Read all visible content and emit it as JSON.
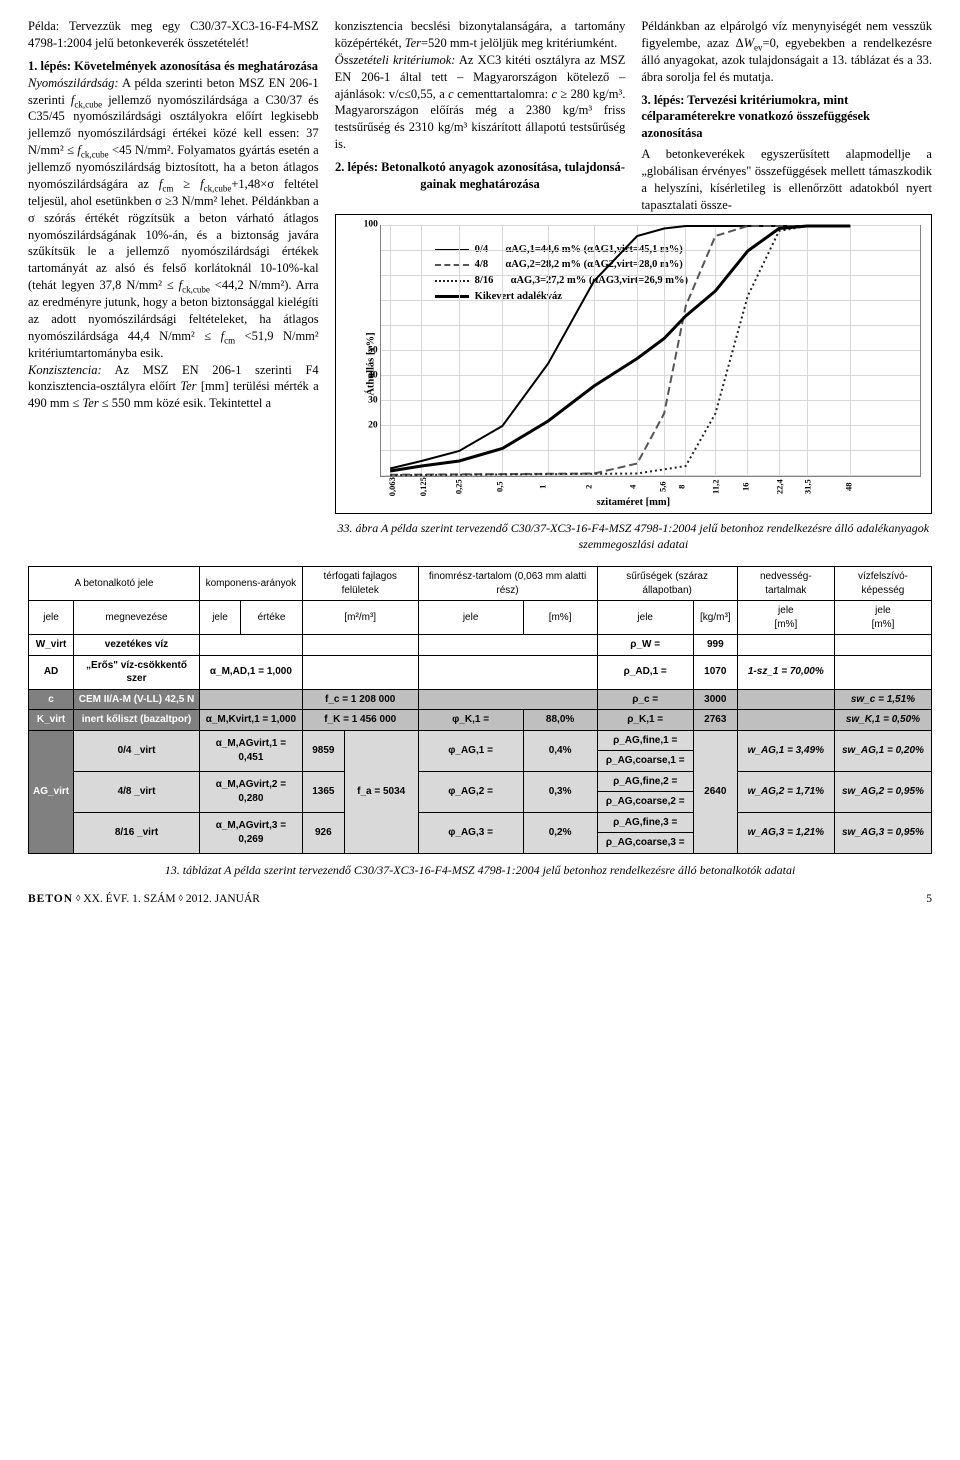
{
  "columns": {
    "c1p1_html": "Példa: Tervezzük meg egy C30/37-XC3-16-F4-MSZ 4798-1:2004 jelű betonkeverék összetételét!",
    "c1p2_html": "1. lépés: Követelmények azonosítása és meghatározása",
    "c1p3_html": "<span class='it'>Nyomószilárdság:</span> A példa szerinti beton MSZ EN 206-1 szerinti <span class='it'>f</span><sub>ck,cube</sub> jellemző nyomószilárdsága a C30/37 és C35/45 nyomószilárdsági osztályokra előírt leg­kisebb jellemző nyomószilárdsági értékei közé kell essen: 37 N/mm² ≤ <span class='it'>f</span><sub>ck,cube</sub> &lt;45 N/mm². Folyamatos gyár­tás esetén a jellemző nyomószilárdság biztosított, ha a beton átlagos nyomó­szilárdságára az <span class='it'>f</span><sub>cm</sub> ≥ <span class='it'>f</span><sub>ck,cube</sub>+1,48×σ feltétel teljesül, ahol esetünkben σ ≥3 N/mm² lehet. Példánkban a σ szórás értékét rögzítsük a beton várha­tó átlagos nyomószilárdságának 10%-án, és a biztonság javára szűkítsük le a jellemző nyomószilárdsági értékek tartományát az alsó és felső korlátoknál 10-10%-kal (tehát legyen 37,8 N/mm² ≤ <span class='it'>f</span><sub>ck,cube</sub> &lt;44,2 N/mm²). Arra az ered­ményre jutunk, hogy a beton bizton­sággal kielégíti az adott nyomószilárdsági feltételeket, ha átlagos nyomószilárd­sága 44,4 N/mm² ≤ <span class='it'>f</span><sub>cm</sub> &lt;51,9 N/mm² kritériumtartományba esik.",
    "c1p4_html": "<span class='it'>Konzisztencia:</span> Az MSZ EN 206-1 sze­rinti F4 konzisztencia-osztályra előírt <span class='it'>Ter</span> [mm] terülési mérték a 490 mm ≤ <span class='it'>Ter</span> ≤ 550 mm közé esik. Tekintettel a",
    "c2p1_html": "konzisztencia becslési bizonytalansá­gára, a tartomány középértékét, <span class='it'>Ter</span>=520 mm-t jelöljük meg kritéri­umként.",
    "c2p2_html": "<span class='it'>Összetételi kritériumok:</span> Az XC3 kitéti osztályra az MSZ EN 206-1 által tett – Magyarországon kötelező – ajánlások: v/c≤0,55, a <span class='it'>c</span> cementtartalomra: <span class='it'>c</span> ≥ 280 kg/m³. Magyarországon előírás még a 2380 kg/m³ friss testsűrűség és 2310 kg/m³ kiszárított állapotú testsűrűség is.",
    "c2step_html": "2. lépés: Betonalkotó anyagok azonosítása, tulajdonsá­gainak meghatározása",
    "c3p1_html": "Példánkban az elpárolgó víz meny­nyiségét nem vesszük figyelembe, azaz Δ<span class='it'>W</span><sub>ev</sub>=0, egyebekben a rendelkezésre álló anyagokat, azok tulajdonságait a 13. táblázat és a 33. ábra sorolja fel és mutatja.",
    "c3step_html": "3. lépés: Tervezési kritériumokra, mint célparaméterekre vonatkozó összefüggések azonosítása",
    "c3p2_html": "A betonkeverékek egyszerűsített alapmodellje a „globálisan érvényes\" összefüggések mellett támaszkodik a helyszíni, kísérletileg is ellenőrzött adatokból nyert tapasztalati össze-"
  },
  "chart": {
    "ylabel": "Áthullás [v%]",
    "xlabel": "szitaméret [mm]",
    "ylim": [
      0,
      100
    ],
    "ytick_step": 10,
    "yticks_labeled": [
      20,
      30,
      40,
      50,
      100
    ],
    "xticks": [
      "0,063",
      "0,125",
      "0,25",
      "0,5",
      "1",
      "2",
      "4",
      "5,6",
      "8",
      "11,2",
      "16",
      "22,4",
      "31,5",
      "48"
    ],
    "xtick_log_pos": [
      0.017,
      0.075,
      0.145,
      0.225,
      0.31,
      0.395,
      0.475,
      0.525,
      0.565,
      0.62,
      0.68,
      0.738,
      0.79,
      0.87
    ],
    "grid_color": "#d8d8d8",
    "legend": {
      "sw_solid": "#000",
      "sw_dash": "#555",
      "sw_dot": "#222",
      "label_04": "0/4",
      "ann_04": "αAG,1=44,6 m% (αAG1,virt=45,1 m%)",
      "label_48": "4/8",
      "ann_48": "αAG,2=28,2 m% (αAG2,virt=28,0 m%)",
      "label_816": "8/16",
      "ann_816": "αAG,3=27,2 m% (αAG3,virt=26,9 m%)",
      "mix_label": "Kikevert adalékváz"
    },
    "series": {
      "s04": {
        "color": "#000",
        "stroke_width": 2.0,
        "dash": "none",
        "points": [
          [
            0.017,
            3
          ],
          [
            0.075,
            6
          ],
          [
            0.145,
            10
          ],
          [
            0.225,
            20
          ],
          [
            0.31,
            45
          ],
          [
            0.395,
            78
          ],
          [
            0.475,
            96
          ],
          [
            0.525,
            99
          ],
          [
            0.565,
            100
          ],
          [
            0.87,
            100
          ]
        ]
      },
      "s48": {
        "color": "#555",
        "stroke_width": 2.0,
        "dash": "8 4",
        "points": [
          [
            0.017,
            0.5
          ],
          [
            0.395,
            1
          ],
          [
            0.475,
            5
          ],
          [
            0.525,
            25
          ],
          [
            0.565,
            68
          ],
          [
            0.62,
            96
          ],
          [
            0.68,
            100
          ],
          [
            0.87,
            100
          ]
        ]
      },
      "s816": {
        "color": "#222",
        "stroke_width": 2.0,
        "dash": "2 3",
        "points": [
          [
            0.017,
            0.3
          ],
          [
            0.475,
            1
          ],
          [
            0.565,
            4
          ],
          [
            0.62,
            25
          ],
          [
            0.68,
            72
          ],
          [
            0.738,
            98
          ],
          [
            0.79,
            100
          ],
          [
            0.87,
            100
          ]
        ]
      },
      "mix": {
        "color": "#000",
        "stroke_width": 3.0,
        "dash": "none",
        "points": [
          [
            0.017,
            2
          ],
          [
            0.075,
            4
          ],
          [
            0.145,
            6
          ],
          [
            0.225,
            11
          ],
          [
            0.31,
            22
          ],
          [
            0.395,
            36
          ],
          [
            0.475,
            47
          ],
          [
            0.525,
            55
          ],
          [
            0.565,
            64
          ],
          [
            0.62,
            74
          ],
          [
            0.68,
            90
          ],
          [
            0.738,
            99
          ],
          [
            0.79,
            100
          ],
          [
            0.87,
            100
          ]
        ]
      }
    }
  },
  "fig_caption": "33. ábra  A példa szerint tervezendő C30/37-XC3-16-F4-MSZ 4798-1:2004 jelű betonhoz rendelkezésre álló adalékanyagok szemmegoszlási adatai",
  "table": {
    "hdr_top": {
      "comp": "A betonalkotó jele",
      "ratio": "komponens-arányok",
      "surf": "térfogati fajlagos felületek",
      "fines": "finomrész-tartalom (0,063 mm alatti rész)",
      "dens": "sűrűségek (száraz állapotban)",
      "moist": "nedvesség-tartalmak",
      "absorb": "vízfelszívó-képesség"
    },
    "hdr_sub": {
      "jele": "jele",
      "megn": "megnevezése",
      "jele2": "jele",
      "ert": "értéke",
      "unit_surf": "[m²/m³]",
      "jele3": "jele",
      "pct": "[m%]",
      "jele4": "jele",
      "kgm3": "[kg/m³]",
      "jele5": "jele",
      "pct2": "[m%]",
      "jele6": "jele",
      "pct3": "[m%]"
    },
    "rows": {
      "w": {
        "sym": "W_virt",
        "name": "vezetékes víz",
        "dens_sym": "ρ_W =",
        "dens": "999"
      },
      "ad": {
        "sym": "AD",
        "name": "„Erős\" víz-csökkentő szer",
        "alpha": "α_M,AD,1 = 1,000",
        "dens_sym": "ρ_AD,1 =",
        "dens": "1070",
        "moist": "1-sz_1 = 70,00%"
      },
      "c": {
        "sym": "c",
        "name": "CEM II/A-M (V-LL) 42,5 N",
        "surf": "f_c = 1 208 000",
        "dens_sym": "ρ_c =",
        "dens": "3000",
        "sw": "sw_c = 1,51%"
      },
      "k": {
        "sym": "K_virt",
        "name": "inert kőliszt (bazaltpor)",
        "alpha": "α_M,Kvirt,1 = 1,000",
        "surf": "f_K = 1 456 000",
        "phi": "φ_K,1 =",
        "phi_v": "88,0%",
        "dens_sym": "ρ_K,1 =",
        "dens": "2763",
        "sw": "sw_K,1 = 0,50%"
      },
      "ag_sym": "AG_virt",
      "ag1": {
        "frac": "0/4 _virt",
        "alpha": "α_M,AGvirt,1 = 0,451",
        "fa": "9859",
        "phi": "φ_AG,1 =",
        "phi_v": "0,4%",
        "rho_f": "ρ_AG,fine,1 =",
        "rho_c": "ρ_AG,coarse,1 =",
        "w": "w_AG,1 = 3,49%",
        "sw": "sw_AG,1 = 0,20%"
      },
      "ag2": {
        "frac": "4/8 _virt",
        "alpha": "α_M,AGvirt,2 = 0,280",
        "fa": "1365",
        "fa_lbl": "f_a = 5034",
        "phi": "φ_AG,2 =",
        "phi_v": "0,3%",
        "rho_f": "ρ_AG,fine,2 =",
        "rho_c": "ρ_AG,coarse,2 =",
        "w": "w_AG,2 = 1,71%",
        "sw": "sw_AG,2 = 0,95%"
      },
      "ag3": {
        "frac": "8/16 _virt",
        "alpha": "α_M,AGvirt,3 = 0,269",
        "fa": "926",
        "phi": "φ_AG,3 =",
        "phi_v": "0,2%",
        "rho_f": "ρ_AG,fine,3 =",
        "rho_c": "ρ_AG,coarse,3 =",
        "w": "w_AG,3 = 1,21%",
        "sw": "sw_AG,3 = 0,95%"
      },
      "ag_dens": "2640"
    }
  },
  "tbl_caption": "13. táblázat  A példa szerint tervezendő C30/37-XC3-16-F4-MSZ 4798-1:2004 jelű betonhoz rendelkezésre álló betonalkotók adatai",
  "footer": {
    "mag": "BETON",
    "sep": "◊",
    "issue": "XX. ÉVF. 1. SZÁM",
    "sep2": "◊",
    "date": "2012. JANUÁR",
    "page": "5"
  }
}
